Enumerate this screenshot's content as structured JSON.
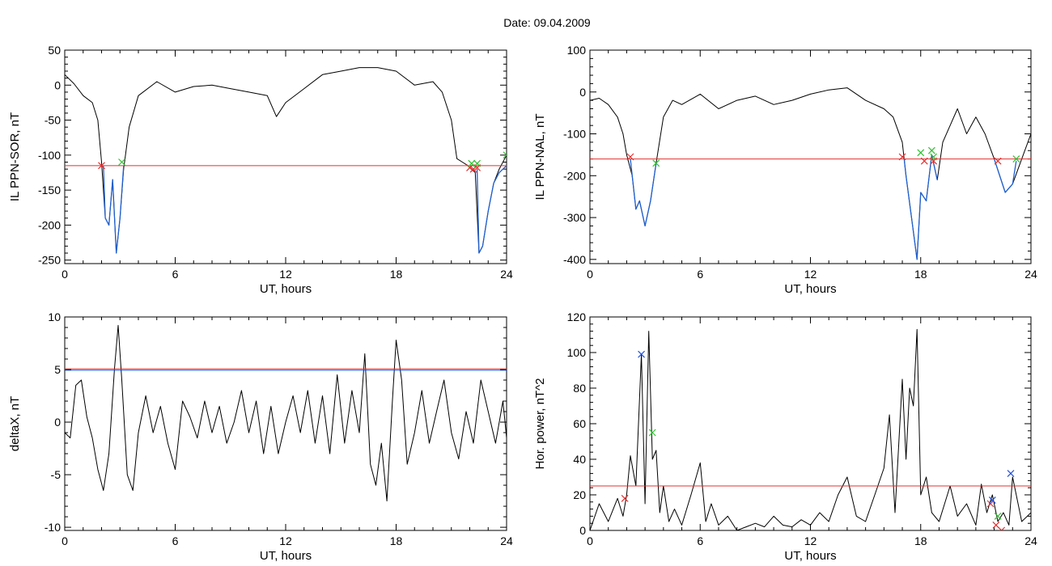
{
  "title": "Date:  09.04.2009",
  "chart_data": [
    {
      "type": "line",
      "panel": "top-left",
      "xlabel": "UT, hours",
      "ylabel": "IL PPN-SOR, nT",
      "xlim": [
        0,
        24
      ],
      "ylim": [
        -255,
        50
      ],
      "xticks": [
        0,
        6,
        12,
        18,
        24
      ],
      "yticks": [
        50,
        0,
        -50,
        -100,
        -150,
        -200,
        -250
      ],
      "threshold": -115,
      "series": [
        {
          "color": "#000000",
          "x": [
            0,
            0.5,
            1,
            1.5,
            1.8,
            2,
            2.2,
            2.4,
            2.6,
            2.8,
            3,
            3.2,
            3.5,
            4,
            5,
            6,
            7,
            8,
            9,
            10,
            11,
            11.5,
            12,
            13,
            14,
            15,
            16,
            17,
            18,
            19,
            20,
            20.5,
            21,
            21.3,
            21.6,
            21.9,
            22.1,
            22.3,
            22.5,
            22.7,
            23,
            23.3,
            23.6,
            24
          ],
          "y": [
            15,
            2,
            -15,
            -25,
            -50,
            -110,
            -190,
            -200,
            -135,
            -240,
            -190,
            -120,
            -60,
            -15,
            5,
            -10,
            -2,
            0,
            -5,
            -10,
            -15,
            -45,
            -25,
            -5,
            15,
            20,
            25,
            25,
            20,
            0,
            5,
            -10,
            -50,
            -105,
            -110,
            -115,
            -120,
            -125,
            -240,
            -230,
            -180,
            -140,
            -120,
            -100
          ]
        },
        {
          "color": "#1f5fd0",
          "x": [
            2.1,
            2.2,
            2.4,
            2.6,
            2.8,
            3,
            3.2
          ],
          "y": [
            -115,
            -190,
            -200,
            -135,
            -240,
            -190,
            -115
          ]
        },
        {
          "color": "#1f5fd0",
          "x": [
            22.4,
            22.5,
            22.7,
            23,
            23.3,
            23.6,
            24
          ],
          "y": [
            -120,
            -240,
            -230,
            -180,
            -140,
            -125,
            -115
          ]
        }
      ],
      "markers": [
        {
          "color": "#e03030",
          "x": [
            2.0,
            22.0,
            22.2,
            22.4
          ],
          "y": [
            -115,
            -118,
            -120,
            -118
          ]
        },
        {
          "color": "#30c030",
          "x": [
            3.1,
            22.1,
            22.4,
            24.0
          ],
          "y": [
            -110,
            -112,
            -112,
            -100
          ]
        }
      ]
    },
    {
      "type": "line",
      "panel": "top-right",
      "xlabel": "UT, hours",
      "ylabel": "IL PPN-NAL, nT",
      "xlim": [
        0,
        24
      ],
      "ylim": [
        -410,
        100
      ],
      "xticks": [
        0,
        6,
        12,
        18,
        24
      ],
      "yticks": [
        100,
        0,
        -100,
        -200,
        -300,
        -400
      ],
      "threshold": -160,
      "series": [
        {
          "color": "#000000",
          "x": [
            0,
            0.5,
            1,
            1.5,
            1.8,
            2,
            2.3,
            2.5,
            2.7,
            3,
            3.3,
            3.6,
            4,
            4.5,
            5,
            6,
            7,
            8,
            9,
            10,
            11,
            12,
            13,
            14,
            15,
            16,
            16.5,
            17,
            17.2,
            17.5,
            17.8,
            18,
            18.3,
            18.6,
            18.9,
            19.2,
            19.6,
            20,
            20.5,
            21,
            21.5,
            22,
            22.3,
            22.6,
            23,
            23.5,
            24
          ],
          "y": [
            -20,
            -15,
            -30,
            -60,
            -100,
            -150,
            -200,
            -280,
            -260,
            -320,
            -260,
            -170,
            -60,
            -20,
            -30,
            -5,
            -40,
            -20,
            -10,
            -30,
            -20,
            -5,
            5,
            10,
            -20,
            -40,
            -60,
            -120,
            -200,
            -300,
            -400,
            -240,
            -260,
            -150,
            -210,
            -120,
            -80,
            -40,
            -100,
            -60,
            -100,
            -160,
            -200,
            -240,
            -220,
            -160,
            -100
          ]
        },
        {
          "color": "#1f5fd0",
          "x": [
            2.2,
            2.5,
            2.7,
            3,
            3.3,
            3.6
          ],
          "y": [
            -160,
            -280,
            -260,
            -320,
            -260,
            -170
          ]
        },
        {
          "color": "#1f5fd0",
          "x": [
            17.1,
            17.2,
            17.5,
            17.8,
            18,
            18.3,
            18.6,
            18.9
          ],
          "y": [
            -160,
            -200,
            -300,
            -400,
            -240,
            -260,
            -150,
            -210
          ]
        },
        {
          "color": "#1f5fd0",
          "x": [
            22.0,
            22.3,
            22.6,
            23,
            23.2
          ],
          "y": [
            -160,
            -200,
            -240,
            -220,
            -165
          ]
        }
      ],
      "markers": [
        {
          "color": "#e03030",
          "x": [
            2.2,
            17.0,
            18.2,
            18.7,
            22.2
          ],
          "y": [
            -155,
            -155,
            -165,
            -165,
            -165
          ]
        },
        {
          "color": "#30c030",
          "x": [
            3.6,
            18.0,
            18.6,
            18.7,
            23.2
          ],
          "y": [
            -170,
            -145,
            -140,
            -155,
            -160
          ]
        }
      ]
    },
    {
      "type": "line",
      "panel": "bottom-left",
      "xlabel": "UT, hours",
      "ylabel": "deltaX, nT",
      "xlim": [
        0,
        24
      ],
      "ylim": [
        -10.3,
        10
      ],
      "xticks": [
        0,
        6,
        12,
        18,
        24
      ],
      "yticks": [
        10,
        5,
        0,
        -5,
        -10
      ],
      "threshold": 5,
      "series": [
        {
          "color": "#000000",
          "x": [
            0,
            0.3,
            0.6,
            0.9,
            1.2,
            1.5,
            1.8,
            2.1,
            2.4,
            2.7,
            2.9,
            3.1,
            3.4,
            3.7,
            4,
            4.4,
            4.8,
            5.2,
            5.6,
            6,
            6.4,
            6.8,
            7.2,
            7.6,
            8,
            8.4,
            8.8,
            9.2,
            9.6,
            10,
            10.4,
            10.8,
            11.2,
            11.6,
            12,
            12.4,
            12.8,
            13.2,
            13.6,
            14,
            14.4,
            14.8,
            15.2,
            15.6,
            16,
            16.3,
            16.6,
            16.9,
            17.2,
            17.5,
            17.8,
            18,
            18.3,
            18.6,
            19,
            19.4,
            19.8,
            20.2,
            20.6,
            21,
            21.4,
            21.8,
            22.2,
            22.6,
            23,
            23.4,
            23.8,
            24
          ],
          "y": [
            -1,
            -1.5,
            3.5,
            4,
            0.5,
            -1.5,
            -4.5,
            -6.5,
            -3,
            5,
            9.2,
            4,
            -5,
            -6.5,
            -1,
            2.5,
            -1,
            1.5,
            -2,
            -4.5,
            2,
            0.5,
            -1.5,
            2,
            -1,
            1.5,
            -2,
            0,
            3,
            -1,
            2,
            -3,
            1.5,
            -3,
            0,
            2.5,
            -1,
            3,
            -2,
            2.5,
            -3,
            4.5,
            -2,
            3,
            -1,
            6.5,
            -4,
            -6,
            -2,
            -7.5,
            2,
            7.8,
            4,
            -4,
            -1,
            3,
            -2,
            1,
            4,
            -1,
            -3.5,
            1,
            -2,
            4,
            1,
            -2,
            2,
            -1.5
          ]
        }
      ],
      "markers": []
    },
    {
      "type": "line",
      "panel": "bottom-right",
      "xlabel": "UT, hours",
      "ylabel": "Hor. power, nT^2",
      "xlim": [
        0,
        24
      ],
      "ylim": [
        0,
        120
      ],
      "xticks": [
        0,
        6,
        12,
        18,
        24
      ],
      "yticks": [
        0,
        20,
        40,
        60,
        80,
        100,
        120
      ],
      "threshold": 25,
      "series": [
        {
          "color": "#000000",
          "x": [
            0,
            0.5,
            1,
            1.5,
            1.8,
            2,
            2.2,
            2.5,
            2.8,
            3,
            3.2,
            3.4,
            3.6,
            3.8,
            4,
            4.3,
            4.6,
            5,
            5.5,
            6,
            6.3,
            6.6,
            7,
            7.5,
            8,
            8.5,
            9,
            9.5,
            10,
            10.5,
            11,
            11.5,
            12,
            12.5,
            13,
            13.5,
            14,
            14.5,
            15,
            15.5,
            16,
            16.3,
            16.6,
            17,
            17.2,
            17.4,
            17.6,
            17.8,
            18,
            18.3,
            18.6,
            19,
            19.3,
            19.6,
            20,
            20.5,
            21,
            21.3,
            21.6,
            21.9,
            22.2,
            22.5,
            22.8,
            23,
            23.5,
            24
          ],
          "y": [
            0,
            15,
            5,
            18,
            8,
            20,
            42,
            25,
            99,
            15,
            112,
            40,
            45,
            10,
            25,
            5,
            12,
            3,
            20,
            38,
            5,
            15,
            3,
            8,
            0,
            2,
            4,
            2,
            8,
            3,
            2,
            6,
            3,
            10,
            5,
            20,
            30,
            8,
            5,
            20,
            35,
            65,
            10,
            85,
            40,
            80,
            70,
            113,
            20,
            30,
            10,
            5,
            15,
            25,
            8,
            15,
            3,
            26,
            10,
            20,
            5,
            10,
            3,
            30,
            5,
            10
          ]
        }
      ],
      "markers": [
        {
          "color": "#e03030",
          "x": [
            1.9,
            21.8,
            22.1,
            22.4
          ],
          "y": [
            18,
            15,
            3,
            0
          ]
        },
        {
          "color": "#30c030",
          "x": [
            3.4,
            22.2
          ],
          "y": [
            55,
            8
          ]
        },
        {
          "color": "#2050e0",
          "x": [
            2.8,
            21.9,
            22.9
          ],
          "y": [
            99,
            17,
            32
          ]
        }
      ]
    }
  ]
}
